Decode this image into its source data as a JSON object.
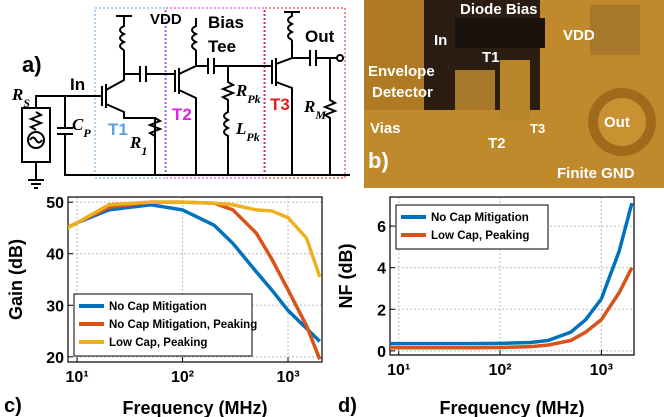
{
  "panel_labels": [
    "a)",
    "b)",
    "c)",
    "d)"
  ],
  "schematic": {
    "labels": [
      "VDD",
      "Bias",
      "Tee",
      "Out",
      "In"
    ],
    "transistors": [
      {
        "text": "T1",
        "color": "#5fa0d8"
      },
      {
        "text": "T2",
        "color": "#e020e0"
      },
      {
        "text": "T3",
        "color": "#e02020"
      }
    ],
    "components": [
      {
        "main": "R",
        "sub": "S"
      },
      {
        "main": "C",
        "sub": "P"
      },
      {
        "main": "R",
        "sub": "1"
      },
      {
        "main": "R",
        "sub": "Pk"
      },
      {
        "main": "L",
        "sub": "Pk"
      },
      {
        "main": "R",
        "sub": "M"
      }
    ]
  },
  "chip": {
    "labels": [
      "Diode Bias",
      "In",
      "VDD",
      "T1",
      "Vias",
      "T2",
      "T3",
      "Out",
      "Finite GND"
    ],
    "envelope": [
      "Envelope",
      "Detector"
    ]
  },
  "chart_data": [
    {
      "type": "line",
      "ylabel": "Gain (dB)",
      "xlabel": "Frequency (MHz)",
      "log_x": true,
      "grid": true,
      "legend": "lower left",
      "x": [
        8,
        10,
        20,
        50,
        100,
        200,
        300,
        500,
        700,
        1000,
        1500,
        2000
      ],
      "series": [
        {
          "name": "No Cap Mitigation",
          "color": "#0072bd",
          "values": [
            45,
            46,
            48.5,
            49.5,
            48.5,
            45.5,
            42,
            36.5,
            33,
            29,
            25.5,
            23
          ]
        },
        {
          "name": "No Cap Mitigation, Peaking",
          "color": "#d95319",
          "values": [
            45,
            46,
            49,
            50,
            50,
            49.8,
            48.5,
            44,
            39,
            33,
            26,
            19.5
          ]
        },
        {
          "name": "Low Cap, Peaking",
          "color": "#edb120",
          "values": [
            45,
            46,
            49.5,
            50,
            50,
            49.8,
            49.5,
            48.5,
            48.3,
            47,
            43,
            35.5
          ]
        }
      ],
      "xlim": [
        8.2,
        2100
      ],
      "ylim": [
        19,
        51
      ],
      "xticks": [
        {
          "value": 10,
          "label": "10¹"
        },
        {
          "value": 100,
          "label": "10²"
        },
        {
          "value": 1000,
          "label": "10³"
        }
      ],
      "yticks": [
        20,
        30,
        40,
        50
      ]
    },
    {
      "type": "line",
      "ylabel": "NF (dB)",
      "xlabel": "Frequency (MHz)",
      "log_x": true,
      "grid": true,
      "legend": "upper left",
      "x": [
        8,
        10,
        20,
        50,
        100,
        200,
        300,
        500,
        700,
        1000,
        1500,
        2000
      ],
      "series": [
        {
          "name": "No Cap Mitigation",
          "color": "#0072bd",
          "values": [
            0.35,
            0.35,
            0.35,
            0.35,
            0.36,
            0.4,
            0.5,
            0.9,
            1.5,
            2.5,
            4.8,
            7.1
          ]
        },
        {
          "name": "Low Cap, Peaking",
          "color": "#d95319",
          "values": [
            0.15,
            0.15,
            0.15,
            0.15,
            0.16,
            0.2,
            0.28,
            0.5,
            0.9,
            1.5,
            2.8,
            4.0
          ]
        }
      ],
      "xlim": [
        8.2,
        2100
      ],
      "ylim": [
        -0.2,
        7.4
      ],
      "xticks": [
        {
          "value": 10,
          "label": "10¹"
        },
        {
          "value": 100,
          "label": "10²"
        },
        {
          "value": 1000,
          "label": "10³"
        }
      ],
      "yticks": [
        0,
        2,
        4,
        6
      ]
    }
  ]
}
